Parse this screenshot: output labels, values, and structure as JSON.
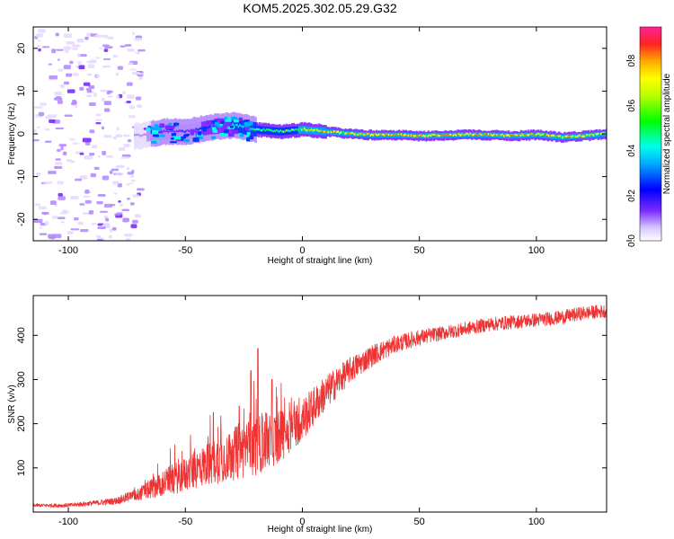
{
  "title": "KOM5.2025.302.05.29.G32",
  "colors": {
    "snr_line": "#ee3333",
    "axis": "#000000",
    "background": "#ffffff"
  },
  "chart_data": [
    {
      "type": "heatmap",
      "name": "spectrogram",
      "xlabel": "Height of straight line (km)",
      "ylabel": "Frequency (Hz)",
      "xlim": [
        -115,
        130
      ],
      "ylim": [
        -25,
        25
      ],
      "xticks": [
        -100,
        -50,
        0,
        50,
        100
      ],
      "yticks": [
        -20,
        -10,
        0,
        10,
        20
      ],
      "xtick_labels": [
        "-100",
        "-50",
        "0",
        "50",
        "100"
      ],
      "ytick_labels": [
        "-20",
        "-10",
        "0",
        "10",
        "20"
      ],
      "colorbar": {
        "label": "Normalized spectral amplitude",
        "range": [
          0,
          0.95
        ],
        "ticks": [
          0.0,
          0.2,
          0.4,
          0.6,
          0.8
        ],
        "tick_labels": [
          "0.0",
          "0.2",
          "0.4",
          "0.6",
          "0.8"
        ]
      },
      "ridge": {
        "description": "Dominant frequency ridge: scattered noise below -70 km, concentrated signal near 0 Hz above",
        "height_km": [
          -70,
          -60,
          -50,
          -40,
          -30,
          -20,
          -10,
          0,
          10,
          20,
          30,
          40,
          50,
          60,
          70,
          80,
          90,
          100,
          110,
          120,
          130
        ],
        "freq_hz": [
          -0.5,
          0.5,
          0.5,
          1.5,
          2.0,
          1.0,
          0.5,
          1.0,
          0.5,
          0.0,
          -0.3,
          -0.3,
          -0.5,
          -0.4,
          -0.2,
          -0.3,
          -0.5,
          -0.2,
          -0.8,
          -0.5,
          0.0
        ],
        "amplitude": [
          0.15,
          0.25,
          0.3,
          0.4,
          0.55,
          0.6,
          0.65,
          0.75,
          0.8,
          0.85,
          0.85,
          0.85,
          0.85,
          0.85,
          0.85,
          0.85,
          0.85,
          0.85,
          0.8,
          0.8,
          0.75
        ]
      }
    },
    {
      "type": "line",
      "name": "snr",
      "xlabel": "Height of straight line (km)",
      "ylabel": "SNR (v/v)",
      "xlim": [
        -115,
        130
      ],
      "ylim": [
        0,
        490
      ],
      "xticks": [
        -100,
        -50,
        0,
        50,
        100
      ],
      "yticks": [
        100,
        200,
        300,
        400
      ],
      "xtick_labels": [
        "-100",
        "-50",
        "0",
        "50",
        "100"
      ],
      "ytick_labels": [
        "100",
        "200",
        "300",
        "400"
      ],
      "series": [
        {
          "name": "SNR",
          "x": [
            -115,
            -100,
            -90,
            -80,
            -70,
            -60,
            -50,
            -40,
            -30,
            -20,
            -10,
            0,
            10,
            20,
            30,
            40,
            50,
            60,
            70,
            80,
            90,
            100,
            110,
            120,
            130
          ],
          "y": [
            15,
            15,
            20,
            25,
            40,
            65,
            85,
            110,
            130,
            150,
            170,
            210,
            270,
            320,
            355,
            380,
            395,
            405,
            415,
            425,
            430,
            435,
            440,
            450,
            455
          ],
          "noise": [
            4,
            5,
            6,
            8,
            15,
            30,
            40,
            50,
            60,
            70,
            60,
            50,
            40,
            30,
            25,
            20,
            18,
            16,
            16,
            16,
            16,
            16,
            16,
            16,
            16
          ],
          "peaks": [
            [
              -38,
              225
            ],
            [
              -27,
              240
            ],
            [
              -22,
              320
            ],
            [
              -19,
              370
            ],
            [
              -13,
              300
            ]
          ]
        }
      ]
    }
  ]
}
